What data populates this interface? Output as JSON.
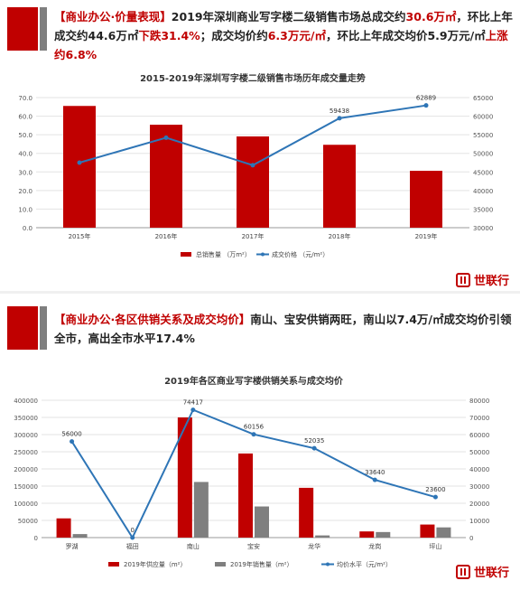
{
  "panel1": {
    "headline": {
      "tag": "【商业办公·价量表现】",
      "p1": "2019年深圳商业写字楼二级销售市场总成交约",
      "h1": "30.6万㎡",
      "p2": "，环比上年成交约44.6万㎡",
      "h2": "下跌31.4%",
      "p3": "；成交均价约",
      "h3": "6.3万元/㎡",
      "p4": "，环比上年成交均价5.9万元/㎡",
      "h4": "上涨约6.8%"
    },
    "brand": "世联行"
  },
  "panel2": {
    "headline": {
      "tag": "【商业办公·各区供销关系及成交均价】",
      "p1": "南山、宝安供销两旺，南山以7.4万/㎡成交均价引领全市，高出全市水平17.4%"
    },
    "brand": "世联行"
  },
  "chart_data": [
    {
      "type": "bar",
      "title": "2015-2019年深圳写字楼二级销售市场历年成交量走势",
      "categories": [
        "2015年",
        "2016年",
        "2017年",
        "2018年",
        "2019年"
      ],
      "series": [
        {
          "name": "总销售量 （万m²）",
          "type": "bar",
          "axis": "left",
          "values": [
            65.5,
            55.4,
            49.1,
            44.6,
            30.6
          ]
        },
        {
          "name": "成交价格 （元/m²）",
          "type": "line",
          "axis": "right",
          "values": [
            47500,
            54200,
            46800,
            59438,
            62889
          ],
          "labels": [
            "",
            "",
            "",
            "59438",
            "62889"
          ]
        }
      ],
      "ylim_left": [
        0,
        70
      ],
      "yticks_left": [
        "0.0",
        "10.0",
        "20.0",
        "30.0",
        "40.0",
        "50.0",
        "60.0",
        "70.0"
      ],
      "ylim_right": [
        30000,
        65000
      ],
      "yticks_right": [
        "30000",
        "35000",
        "40000",
        "45000",
        "50000",
        "55000",
        "60000",
        "65000"
      ],
      "colors": {
        "bar": "#c00000",
        "line": "#2e75b6"
      },
      "legend": "bottom"
    },
    {
      "type": "bar",
      "title": "2019年各区商业写字楼供销关系与成交均价",
      "categories": [
        "罗湖",
        "福田",
        "南山",
        "宝安",
        "龙华",
        "龙岗",
        "坪山"
      ],
      "series": [
        {
          "name": "2019年供应量（m²）",
          "type": "bar",
          "axis": "left",
          "values": [
            56000,
            0,
            350000,
            245000,
            145000,
            18000,
            38000
          ]
        },
        {
          "name": "2019年销售量（m²）",
          "type": "bar",
          "axis": "left",
          "values": [
            10252,
            0,
            162028,
            90684,
            6344,
            16187,
            29727
          ]
        },
        {
          "name": "均价水平（元/m²）",
          "type": "line",
          "axis": "right",
          "values": [
            56000,
            0,
            74417,
            60156,
            52035,
            33640,
            23600
          ],
          "labels": [
            "56000",
            "0",
            "74417",
            "60156",
            "52035",
            "33640",
            "23600"
          ]
        }
      ],
      "ylim_left": [
        0,
        400000
      ],
      "yticks_left": [
        "0",
        "50000",
        "100000",
        "150000",
        "200000",
        "250000",
        "300000",
        "350000",
        "400000"
      ],
      "ylim_right": [
        0,
        80000
      ],
      "yticks_right": [
        "0",
        "10000",
        "20000",
        "30000",
        "40000",
        "50000",
        "60000",
        "70000",
        "80000"
      ],
      "colors": {
        "supply": "#c00000",
        "sales": "#7f7f7f",
        "line": "#2e75b6"
      },
      "legend": "bottom"
    }
  ]
}
